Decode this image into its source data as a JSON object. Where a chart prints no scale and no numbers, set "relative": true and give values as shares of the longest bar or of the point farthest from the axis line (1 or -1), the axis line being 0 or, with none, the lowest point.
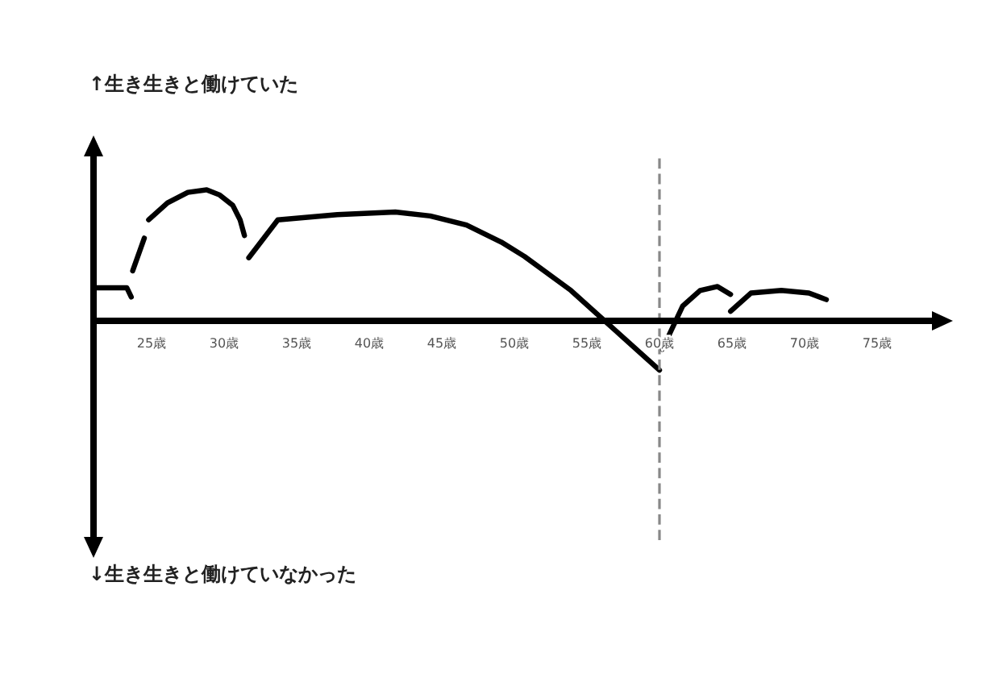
{
  "chart_data": {
    "type": "line",
    "relative": true,
    "annotations": [
      "↑生き生きと働けていた",
      "↓生き生きと働けていなかった"
    ],
    "xlim": [
      21,
      79
    ],
    "xticks": [
      {
        "value": 25,
        "label": "25歳"
      },
      {
        "value": 30,
        "label": "30歳"
      },
      {
        "value": 35,
        "label": "35歳"
      },
      {
        "value": 40,
        "label": "40歳"
      },
      {
        "value": 45,
        "label": "45歳"
      },
      {
        "value": 50,
        "label": "50歳"
      },
      {
        "value": 55,
        "label": "55歳"
      },
      {
        "value": 60,
        "label": "60歳"
      },
      {
        "value": 65,
        "label": "65歳"
      },
      {
        "value": 70,
        "label": "70歳"
      },
      {
        "value": 75,
        "label": "75歳"
      }
    ],
    "marker": "none",
    "line_style": "solid",
    "series": [
      {
        "color": "#000000",
        "x": [
          21.1,
          23.3,
          23.6
        ],
        "values": [
          0.25,
          0.25,
          0.18
        ]
      },
      {
        "color": "#000000",
        "x": [
          23.7,
          24.5
        ],
        "values": [
          0.38,
          0.63
        ]
      },
      {
        "color": "#000000",
        "x": [
          24.8,
          26.1,
          27.5,
          28.8,
          29.7,
          30.6,
          31.1,
          31.4
        ],
        "values": [
          0.77,
          0.9,
          0.98,
          1,
          0.96,
          0.88,
          0.77,
          0.65
        ]
      },
      {
        "color": "#000000",
        "x": [
          31.7,
          33.7,
          37.8,
          41.8,
          44.2,
          46.7,
          49.1,
          50.7,
          53.9,
          56,
          57.9,
          60
        ],
        "values": [
          0.48,
          0.77,
          0.81,
          0.83,
          0.8,
          0.73,
          0.6,
          0.49,
          0.23,
          0.02,
          -0.17,
          -0.38
        ]
      },
      {
        "color": "#000000",
        "x": [
          60.2,
          61.6,
          62.8,
          64,
          64.9
        ],
        "values": [
          -0.22,
          0.11,
          0.23,
          0.26,
          0.2
        ]
      },
      {
        "color": "#000000",
        "x": [
          64.9,
          66.3,
          68.4,
          70.3,
          71.5
        ],
        "values": [
          0.07,
          0.21,
          0.23,
          0.21,
          0.16
        ]
      }
    ],
    "ref_lines": [
      {
        "axis": "x",
        "value": 60,
        "color": "#888888",
        "line_style": "dashed"
      }
    ]
  }
}
